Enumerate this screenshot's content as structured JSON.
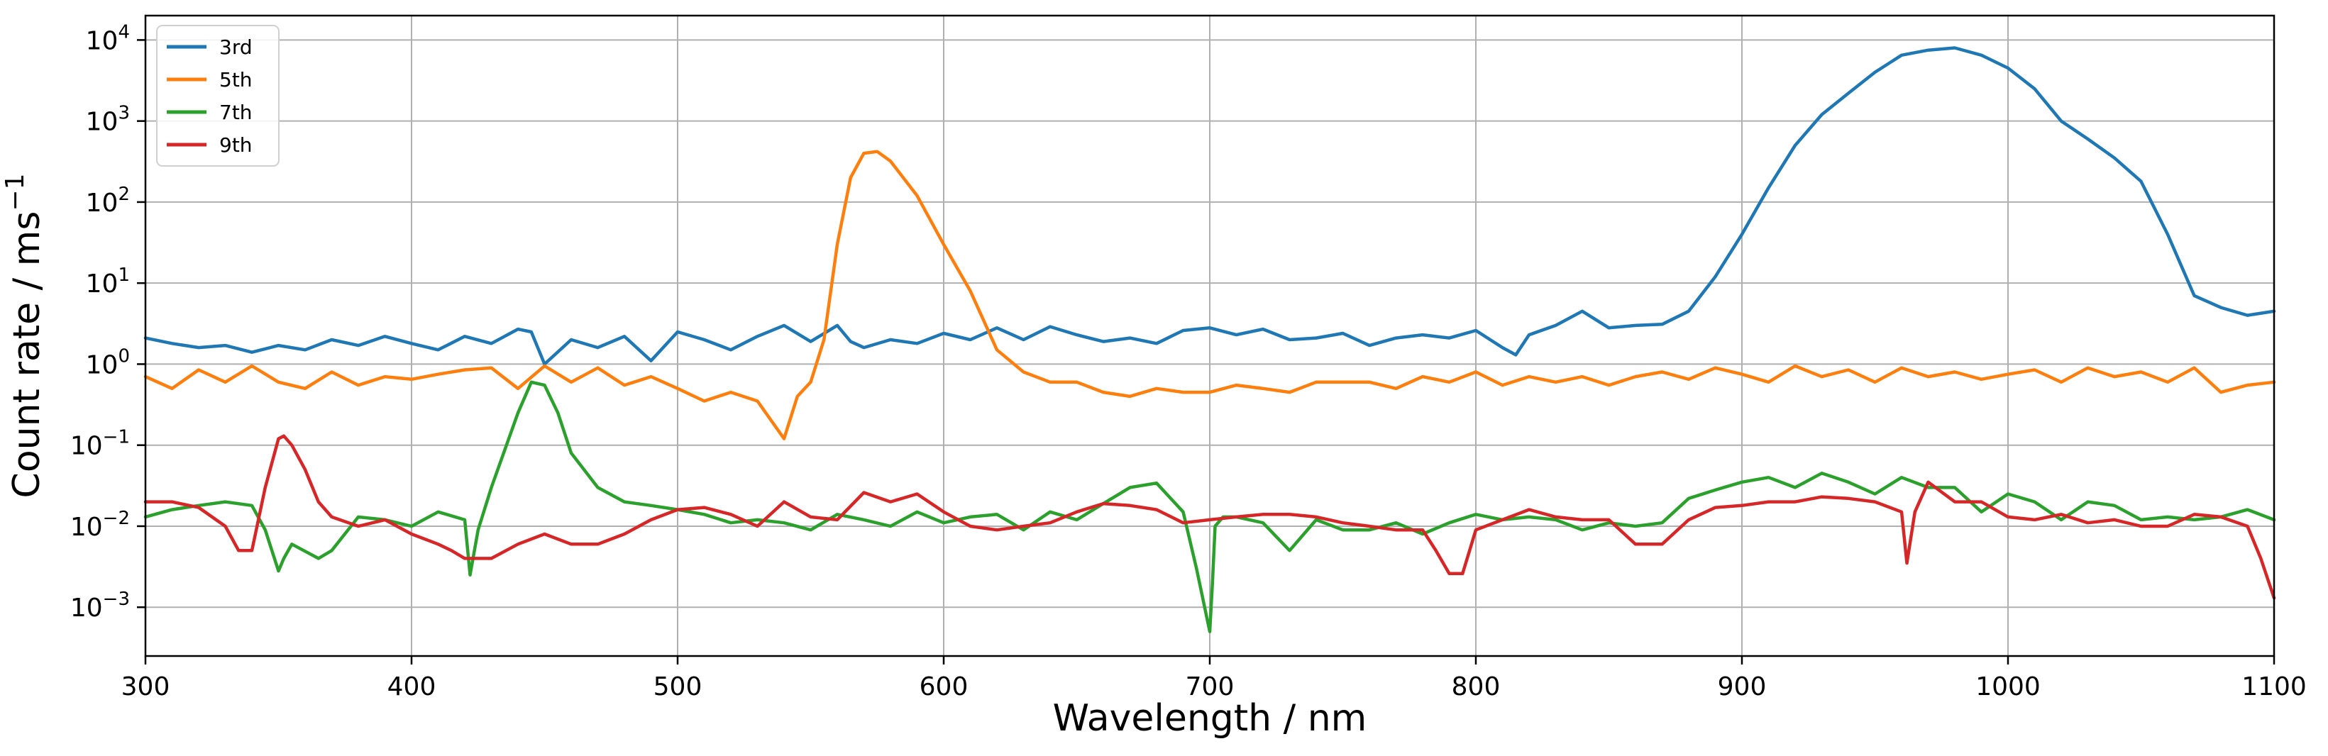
{
  "chart_data": {
    "type": "line",
    "title": "",
    "xlabel": "Wavelength / nm",
    "ylabel": "Count rate / ms",
    "ylabel_superscript": "−1",
    "xlim": [
      300,
      1100
    ],
    "ylim": [
      0.00025,
      20000
    ],
    "yscale": "log",
    "grid": true,
    "legend_position": "top-left",
    "x_ticks": [
      {
        "value": 300,
        "label": "300"
      },
      {
        "value": 400,
        "label": "400"
      },
      {
        "value": 500,
        "label": "500"
      },
      {
        "value": 600,
        "label": "600"
      },
      {
        "value": 700,
        "label": "700"
      },
      {
        "value": 800,
        "label": "800"
      },
      {
        "value": 900,
        "label": "900"
      },
      {
        "value": 1000,
        "label": "1000"
      },
      {
        "value": 1100,
        "label": "1100"
      }
    ],
    "y_ticks": [
      {
        "value": 0.001,
        "base": "10",
        "exp": "−3"
      },
      {
        "value": 0.01,
        "base": "10",
        "exp": "−2"
      },
      {
        "value": 0.1,
        "base": "10",
        "exp": "−1"
      },
      {
        "value": 1,
        "base": "10",
        "exp": "0"
      },
      {
        "value": 10,
        "base": "10",
        "exp": "1"
      },
      {
        "value": 100,
        "base": "10",
        "exp": "2"
      },
      {
        "value": 1000,
        "base": "10",
        "exp": "3"
      },
      {
        "value": 10000,
        "base": "10",
        "exp": "4"
      }
    ],
    "series": [
      {
        "name": "3rd",
        "color": "#1f77b4",
        "x": [
          300,
          310,
          320,
          330,
          340,
          350,
          360,
          370,
          380,
          390,
          400,
          410,
          420,
          430,
          440,
          445,
          450,
          460,
          470,
          480,
          490,
          500,
          510,
          520,
          530,
          540,
          550,
          560,
          565,
          570,
          580,
          590,
          600,
          610,
          620,
          630,
          640,
          650,
          660,
          670,
          680,
          690,
          700,
          710,
          720,
          730,
          740,
          750,
          760,
          770,
          780,
          790,
          800,
          810,
          815,
          820,
          830,
          840,
          850,
          860,
          870,
          880,
          890,
          900,
          910,
          920,
          930,
          940,
          950,
          960,
          970,
          980,
          990,
          1000,
          1010,
          1020,
          1030,
          1040,
          1050,
          1060,
          1070,
          1080,
          1090,
          1100
        ],
        "y": [
          2.1,
          1.8,
          1.6,
          1.7,
          1.4,
          1.7,
          1.5,
          2.0,
          1.7,
          2.2,
          1.8,
          1.5,
          2.2,
          1.8,
          2.7,
          2.5,
          1.0,
          2.0,
          1.6,
          2.2,
          1.1,
          2.5,
          2.0,
          1.5,
          2.2,
          3.0,
          1.9,
          3.0,
          1.9,
          1.6,
          2.0,
          1.8,
          2.4,
          2.0,
          2.8,
          2.0,
          2.9,
          2.3,
          1.9,
          2.1,
          1.8,
          2.6,
          2.8,
          2.3,
          2.7,
          2.0,
          2.1,
          2.4,
          1.7,
          2.1,
          2.3,
          2.1,
          2.6,
          1.6,
          1.3,
          2.3,
          3.0,
          4.5,
          2.8,
          3.0,
          3.1,
          4.5,
          12,
          40,
          150,
          500,
          1200,
          2200,
          4000,
          6500,
          7500,
          8000,
          6500,
          4500,
          2500,
          1000,
          600,
          350,
          180,
          40,
          7,
          5,
          4,
          4.5
        ]
      },
      {
        "name": "5th",
        "color": "#ff7f0e",
        "x": [
          300,
          310,
          320,
          330,
          340,
          350,
          360,
          370,
          380,
          390,
          400,
          410,
          420,
          430,
          440,
          450,
          460,
          470,
          480,
          490,
          500,
          510,
          520,
          530,
          540,
          545,
          550,
          555,
          560,
          565,
          570,
          575,
          580,
          590,
          600,
          610,
          620,
          630,
          640,
          650,
          660,
          670,
          680,
          690,
          700,
          710,
          720,
          730,
          740,
          750,
          760,
          770,
          780,
          790,
          800,
          810,
          820,
          830,
          840,
          850,
          860,
          870,
          880,
          890,
          900,
          910,
          920,
          930,
          940,
          950,
          960,
          970,
          980,
          990,
          1000,
          1010,
          1020,
          1030,
          1040,
          1050,
          1060,
          1070,
          1080,
          1090,
          1100
        ],
        "y": [
          0.7,
          0.5,
          0.85,
          0.6,
          0.95,
          0.6,
          0.5,
          0.8,
          0.55,
          0.7,
          0.65,
          0.75,
          0.85,
          0.9,
          0.5,
          0.95,
          0.6,
          0.9,
          0.55,
          0.7,
          0.5,
          0.35,
          0.45,
          0.35,
          0.12,
          0.4,
          0.6,
          2.0,
          30,
          200,
          400,
          420,
          320,
          120,
          30,
          8,
          1.5,
          0.8,
          0.6,
          0.6,
          0.45,
          0.4,
          0.5,
          0.45,
          0.45,
          0.55,
          0.5,
          0.45,
          0.6,
          0.6,
          0.6,
          0.5,
          0.7,
          0.6,
          0.8,
          0.55,
          0.7,
          0.6,
          0.7,
          0.55,
          0.7,
          0.8,
          0.65,
          0.9,
          0.75,
          0.6,
          0.95,
          0.7,
          0.85,
          0.6,
          0.9,
          0.7,
          0.8,
          0.65,
          0.75,
          0.85,
          0.6,
          0.9,
          0.7,
          0.8,
          0.6,
          0.9,
          0.45,
          0.55,
          0.6
        ]
      },
      {
        "name": "7th",
        "color": "#2ca02c",
        "x": [
          300,
          310,
          320,
          330,
          340,
          345,
          350,
          352,
          355,
          365,
          370,
          380,
          390,
          400,
          410,
          420,
          422,
          425,
          430,
          440,
          445,
          450,
          455,
          460,
          470,
          480,
          490,
          500,
          510,
          520,
          530,
          540,
          550,
          560,
          570,
          580,
          590,
          600,
          610,
          620,
          630,
          640,
          650,
          660,
          670,
          680,
          690,
          695,
          700,
          701,
          702,
          705,
          710,
          720,
          730,
          740,
          750,
          760,
          770,
          780,
          790,
          800,
          810,
          820,
          830,
          840,
          850,
          860,
          870,
          880,
          890,
          900,
          910,
          920,
          930,
          940,
          950,
          960,
          970,
          980,
          990,
          1000,
          1010,
          1020,
          1030,
          1040,
          1050,
          1060,
          1070,
          1080,
          1090,
          1100
        ],
        "y": [
          0.013,
          0.016,
          0.018,
          0.02,
          0.018,
          0.009,
          0.0028,
          0.004,
          0.006,
          0.004,
          0.005,
          0.013,
          0.012,
          0.01,
          0.015,
          0.012,
          0.0025,
          0.009,
          0.03,
          0.25,
          0.6,
          0.55,
          0.25,
          0.08,
          0.03,
          0.02,
          0.018,
          0.016,
          0.014,
          0.011,
          0.012,
          0.011,
          0.009,
          0.014,
          0.012,
          0.01,
          0.015,
          0.011,
          0.013,
          0.014,
          0.009,
          0.015,
          0.012,
          0.019,
          0.03,
          0.034,
          0.015,
          0.003,
          0.0005,
          0.002,
          0.01,
          0.013,
          0.013,
          0.011,
          0.005,
          0.012,
          0.009,
          0.009,
          0.011,
          0.008,
          0.011,
          0.014,
          0.012,
          0.013,
          0.012,
          0.009,
          0.011,
          0.01,
          0.011,
          0.022,
          0.028,
          0.035,
          0.04,
          0.03,
          0.045,
          0.035,
          0.025,
          0.04,
          0.03,
          0.03,
          0.015,
          0.025,
          0.02,
          0.012,
          0.02,
          0.018,
          0.012,
          0.013,
          0.012,
          0.013,
          0.016,
          0.012
        ]
      },
      {
        "name": "9th",
        "color": "#d62728",
        "x": [
          300,
          310,
          320,
          330,
          335,
          340,
          345,
          350,
          352,
          355,
          360,
          365,
          370,
          380,
          390,
          400,
          410,
          415,
          420,
          430,
          440,
          450,
          460,
          470,
          480,
          490,
          500,
          510,
          520,
          530,
          540,
          550,
          560,
          570,
          580,
          590,
          600,
          610,
          620,
          630,
          640,
          650,
          660,
          670,
          680,
          690,
          700,
          710,
          720,
          730,
          740,
          750,
          760,
          770,
          780,
          785,
          790,
          795,
          800,
          810,
          820,
          830,
          840,
          850,
          860,
          870,
          880,
          890,
          900,
          910,
          920,
          930,
          940,
          950,
          960,
          962,
          965,
          970,
          980,
          990,
          1000,
          1010,
          1020,
          1030,
          1040,
          1050,
          1060,
          1070,
          1080,
          1090,
          1095,
          1100
        ],
        "y": [
          0.02,
          0.02,
          0.017,
          0.01,
          0.005,
          0.005,
          0.03,
          0.12,
          0.13,
          0.1,
          0.05,
          0.02,
          0.013,
          0.01,
          0.012,
          0.008,
          0.006,
          0.005,
          0.004,
          0.004,
          0.006,
          0.008,
          0.006,
          0.006,
          0.008,
          0.012,
          0.016,
          0.017,
          0.014,
          0.01,
          0.02,
          0.013,
          0.012,
          0.026,
          0.02,
          0.025,
          0.015,
          0.01,
          0.009,
          0.01,
          0.011,
          0.015,
          0.019,
          0.018,
          0.016,
          0.011,
          0.012,
          0.013,
          0.014,
          0.014,
          0.013,
          0.011,
          0.01,
          0.009,
          0.009,
          0.005,
          0.0026,
          0.0026,
          0.009,
          0.012,
          0.016,
          0.013,
          0.012,
          0.012,
          0.006,
          0.006,
          0.012,
          0.017,
          0.018,
          0.02,
          0.02,
          0.023,
          0.022,
          0.02,
          0.015,
          0.0035,
          0.015,
          0.035,
          0.02,
          0.02,
          0.013,
          0.012,
          0.014,
          0.011,
          0.012,
          0.01,
          0.01,
          0.014,
          0.013,
          0.01,
          0.004,
          0.0013
        ]
      }
    ]
  }
}
